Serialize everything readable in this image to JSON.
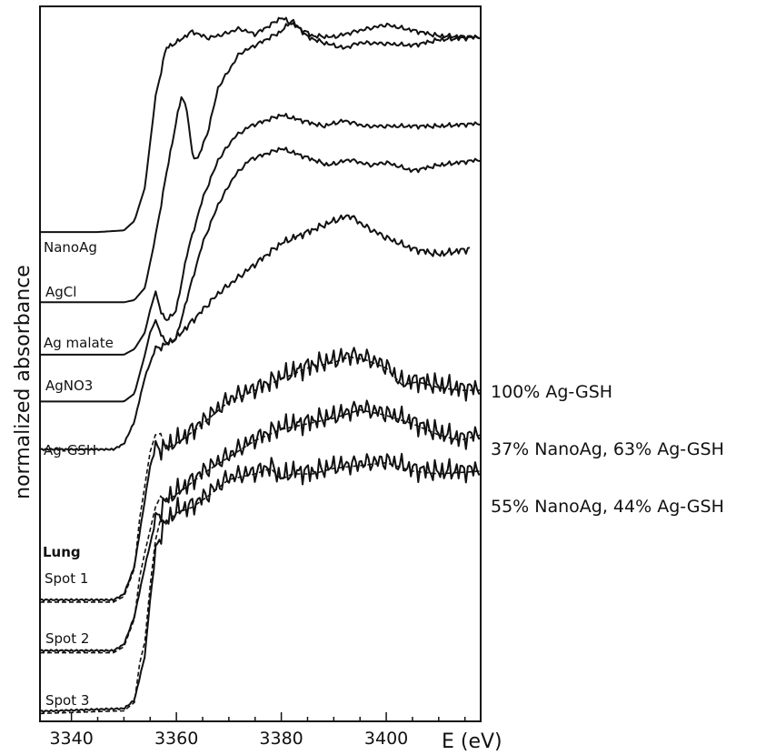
{
  "chart_data": {
    "type": "line",
    "xlabel": "E (eV)",
    "ylabel": "normalized absorbance",
    "xlim": [
      3334,
      3418
    ],
    "x_ticks": [
      3340,
      3360,
      3380,
      3400
    ],
    "grid": false,
    "series": [
      {
        "name": "NanoAg",
        "x": [
          3334,
          3345,
          3350,
          3352,
          3354,
          3356,
          3358,
          3360,
          3363,
          3366,
          3369,
          3372,
          3375,
          3378,
          3380,
          3383,
          3386,
          3390,
          3395,
          3400,
          3405,
          3410,
          3418
        ],
        "y": [
          0.86,
          0.86,
          0.863,
          0.88,
          0.94,
          1.1,
          1.19,
          1.2,
          1.22,
          1.208,
          1.215,
          1.225,
          1.215,
          1.232,
          1.245,
          1.228,
          1.212,
          1.21,
          1.222,
          1.232,
          1.222,
          1.212,
          1.21
        ]
      },
      {
        "name": "AgCl",
        "x": [
          3334,
          3350,
          3352,
          3354,
          3356,
          3358,
          3360,
          3361,
          3362,
          3363,
          3364,
          3366,
          3368,
          3372,
          3376,
          3380,
          3382,
          3385,
          3388,
          3392,
          3395,
          3400,
          3405,
          3410,
          3418
        ],
        "y": [
          0.734,
          0.734,
          0.738,
          0.76,
          0.85,
          0.96,
          1.06,
          1.105,
          1.08,
          1.0,
          0.99,
          1.04,
          1.12,
          1.18,
          1.2,
          1.22,
          1.24,
          1.21,
          1.2,
          1.19,
          1.2,
          1.198,
          1.195,
          1.205,
          1.21
        ]
      },
      {
        "name": "Ag malate",
        "x": [
          3334,
          3350,
          3352,
          3354,
          3355,
          3356,
          3357,
          3358,
          3360,
          3362,
          3365,
          3368,
          3371,
          3374,
          3377,
          3380,
          3384,
          3388,
          3392,
          3396,
          3400,
          3405,
          3410,
          3418
        ],
        "y": [
          0.64,
          0.64,
          0.65,
          0.68,
          0.72,
          0.752,
          0.72,
          0.7,
          0.72,
          0.82,
          0.92,
          0.99,
          1.03,
          1.05,
          1.06,
          1.07,
          1.06,
          1.05,
          1.06,
          1.05,
          1.05,
          1.05,
          1.05,
          1.055
        ]
      },
      {
        "name": "AgNO3",
        "x": [
          3334,
          3350,
          3352,
          3354,
          3355,
          3356,
          3357,
          3358,
          3360,
          3362,
          3365,
          3368,
          3371,
          3374,
          3377,
          3380,
          3383,
          3386,
          3389,
          3393,
          3397,
          3400,
          3405,
          3410,
          3418
        ],
        "y": [
          0.556,
          0.556,
          0.57,
          0.64,
          0.68,
          0.7,
          0.68,
          0.66,
          0.67,
          0.74,
          0.84,
          0.91,
          0.96,
          0.99,
          1.0,
          1.01,
          1.0,
          0.99,
          0.98,
          0.99,
          0.98,
          0.985,
          0.97,
          0.98,
          0.99
        ]
      },
      {
        "name": "Ag-GSH",
        "x": [
          3334,
          3348,
          3350,
          3352,
          3354,
          3356,
          3358,
          3360,
          3362,
          3365,
          3368,
          3372,
          3376,
          3380,
          3385,
          3390,
          3393,
          3396,
          3400,
          3405,
          3410,
          3416
        ],
        "y": [
          0.47,
          0.47,
          0.48,
          0.52,
          0.6,
          0.65,
          0.658,
          0.67,
          0.69,
          0.72,
          0.75,
          0.78,
          0.81,
          0.84,
          0.86,
          0.88,
          0.89,
          0.87,
          0.85,
          0.83,
          0.82,
          0.83
        ]
      },
      {
        "name": "Lung Spot 1",
        "x": [
          3334,
          3348,
          3350,
          3352,
          3354,
          3355,
          3356,
          3358,
          3361,
          3365,
          3370,
          3375,
          3380,
          3385,
          3390,
          3393,
          3396,
          3400,
          3403,
          3406,
          3410,
          3414,
          3418
        ],
        "y": [
          0.2,
          0.2,
          0.21,
          0.26,
          0.38,
          0.44,
          0.47,
          0.475,
          0.49,
          0.52,
          0.56,
          0.58,
          0.6,
          0.62,
          0.63,
          0.64,
          0.635,
          0.62,
          0.59,
          0.595,
          0.585,
          0.58,
          0.58
        ]
      },
      {
        "name": "Lung Spot 2",
        "x": [
          3334,
          3348,
          3350,
          3352,
          3354,
          3356,
          3358,
          3361,
          3365,
          3370,
          3375,
          3380,
          3385,
          3390,
          3395,
          3400,
          3405,
          3410,
          3414,
          3418
        ],
        "y": [
          0.109,
          0.109,
          0.12,
          0.17,
          0.26,
          0.34,
          0.38,
          0.4,
          0.43,
          0.46,
          0.49,
          0.51,
          0.52,
          0.53,
          0.545,
          0.535,
          0.52,
          0.5,
          0.49,
          0.5
        ]
      },
      {
        "name": "Lung Spot 3",
        "x": [
          3334,
          3350,
          3352,
          3354,
          3355,
          3356,
          3357,
          3358,
          3360,
          3363,
          3366,
          3370,
          3375,
          3378,
          3380,
          3382,
          3386,
          3390,
          3395,
          3400,
          3405,
          3410,
          3418
        ],
        "y": [
          0.0,
          0.005,
          0.02,
          0.1,
          0.2,
          0.28,
          0.32,
          0.34,
          0.36,
          0.37,
          0.39,
          0.42,
          0.43,
          0.44,
          0.42,
          0.43,
          0.43,
          0.44,
          0.445,
          0.45,
          0.435,
          0.43,
          0.435
        ]
      }
    ],
    "fits": [
      {
        "label": "100% Ag-GSH",
        "fit_of": "Lung Spot 1"
      },
      {
        "label": "37% NanoAg, 63% Ag-GSH",
        "fit_of": "Lung Spot 2"
      },
      {
        "label": "55% NanoAg, 44% Ag-GSH",
        "fit_of": "Lung Spot 3"
      }
    ],
    "curve_labels": [
      "NanoAg",
      "AgCl",
      "Ag malate",
      "AgNO3",
      "Ag-GSH",
      "Lung",
      "Spot 1",
      "Spot 2",
      "Spot 3"
    ]
  }
}
